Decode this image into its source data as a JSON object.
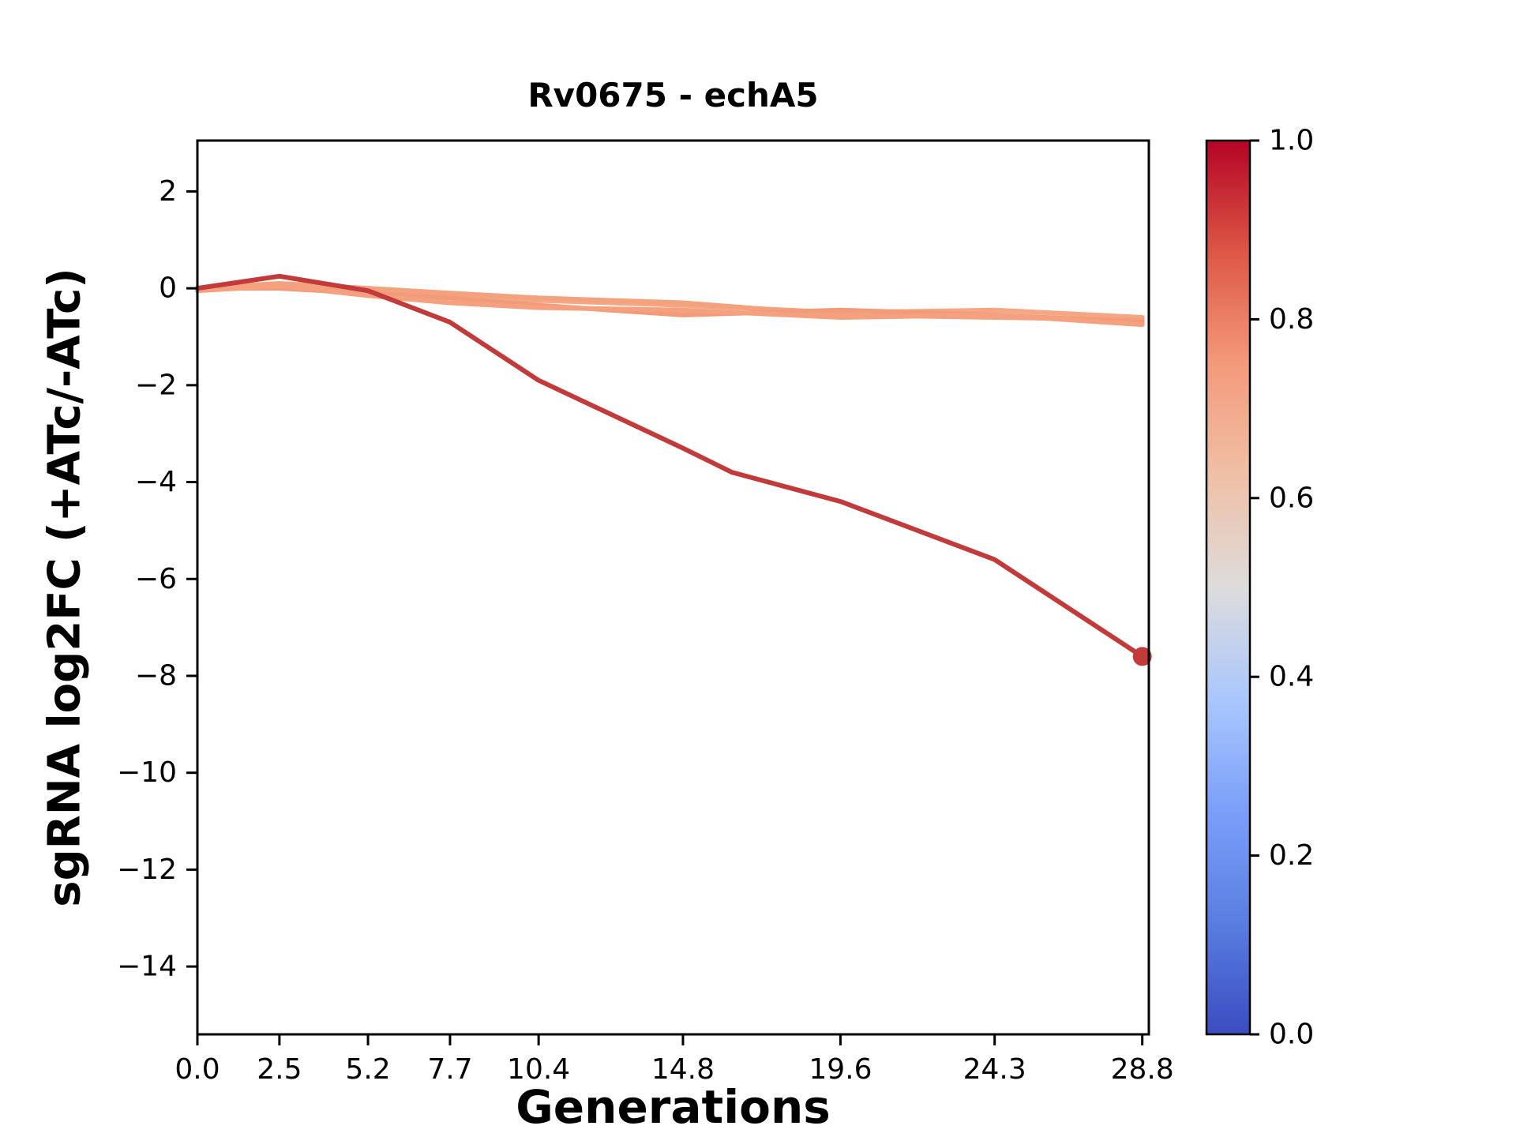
{
  "figure": {
    "background": "#ffffff"
  },
  "chart_data": {
    "type": "line",
    "title": "Rv0675 - echA5",
    "xlabel": "Generations",
    "ylabel": "sgRNA log2FC (+ATc/-ATc)",
    "xlim": [
      0,
      29.0
    ],
    "ylim": [
      -15.4,
      3.05
    ],
    "grid": false,
    "legend_position": "none",
    "x_ticks": {
      "values": [
        0.0,
        2.5,
        5.2,
        7.7,
        10.4,
        14.8,
        19.6,
        24.3,
        28.8
      ],
      "labels": [
        "0.0",
        "2.5",
        "5.2",
        "7.7",
        "10.4",
        "14.8",
        "19.6",
        "24.3",
        "28.8"
      ]
    },
    "y_ticks": {
      "values": [
        2,
        0,
        -2,
        -4,
        -6,
        -8,
        -10,
        -12,
        -14
      ],
      "labels": [
        "2",
        "0",
        "−2",
        "−4",
        "−6",
        "−8",
        "−10",
        "−12",
        "−14"
      ]
    },
    "series": [
      {
        "name": "series-1",
        "color": "#f5a684",
        "colormap_value": 0.73,
        "width": 6,
        "x": [
          0.0,
          2.5,
          5.2,
          7.7,
          10.4,
          14.8,
          19.6,
          24.3,
          28.8
        ],
        "y": [
          0.0,
          0.05,
          -0.05,
          -0.15,
          -0.25,
          -0.35,
          -0.5,
          -0.45,
          -0.6
        ],
        "end_marker": false
      },
      {
        "name": "series-2",
        "color": "#f4a17e",
        "colormap_value": 0.74,
        "width": 6,
        "x": [
          0.0,
          2.5,
          5.2,
          7.7,
          10.4,
          14.8,
          19.6,
          24.3,
          28.8
        ],
        "y": [
          0.0,
          0.1,
          0.0,
          -0.1,
          -0.2,
          -0.3,
          -0.55,
          -0.6,
          -0.65
        ],
        "end_marker": false
      },
      {
        "name": "series-3",
        "color": "#f29b7a",
        "colormap_value": 0.75,
        "width": 6,
        "x": [
          0.0,
          2.5,
          5.2,
          7.7,
          10.4,
          14.8,
          19.6,
          24.3,
          28.8
        ],
        "y": [
          0.0,
          0.0,
          -0.1,
          -0.2,
          -0.35,
          -0.55,
          -0.45,
          -0.55,
          -0.7
        ],
        "end_marker": false
      },
      {
        "name": "series-4",
        "color": "#f5a17f",
        "colormap_value": 0.74,
        "width": 6,
        "x": [
          0.0,
          2.5,
          5.2,
          7.7,
          10.4,
          14.8,
          19.6,
          24.3,
          28.8
        ],
        "y": [
          -0.05,
          0.05,
          -0.15,
          -0.3,
          -0.4,
          -0.45,
          -0.6,
          -0.55,
          -0.75
        ],
        "end_marker": false
      },
      {
        "name": "series-5",
        "color": "#c33a3b",
        "colormap_value": 0.97,
        "width": 6,
        "x": [
          0.0,
          2.5,
          5.2,
          7.7,
          10.4,
          14.8,
          16.3,
          19.6,
          24.3,
          28.8
        ],
        "y": [
          0.0,
          0.25,
          -0.05,
          -0.7,
          -1.9,
          -3.3,
          -3.8,
          -4.4,
          -5.6,
          -7.6
        ],
        "end_marker": true
      }
    ],
    "colorbar": {
      "min_label": "0.0",
      "max_label": "1.0",
      "ticks": {
        "values": [
          0.0,
          0.2,
          0.4,
          0.6,
          0.8,
          1.0
        ],
        "labels": [
          "0.0",
          "0.2",
          "0.4",
          "0.6",
          "0.8",
          "1.0"
        ]
      },
      "gradient_stops": [
        {
          "at": 0.0,
          "color": "#3b4cc0"
        },
        {
          "at": 0.125,
          "color": "#597ee1"
        },
        {
          "at": 0.25,
          "color": "#7b9ff9"
        },
        {
          "at": 0.375,
          "color": "#aac7fd"
        },
        {
          "at": 0.5,
          "color": "#dddcdc"
        },
        {
          "at": 0.625,
          "color": "#f0c0a6"
        },
        {
          "at": 0.75,
          "color": "#f49a7b"
        },
        {
          "at": 0.875,
          "color": "#dd5745"
        },
        {
          "at": 1.0,
          "color": "#b40426"
        }
      ]
    }
  }
}
